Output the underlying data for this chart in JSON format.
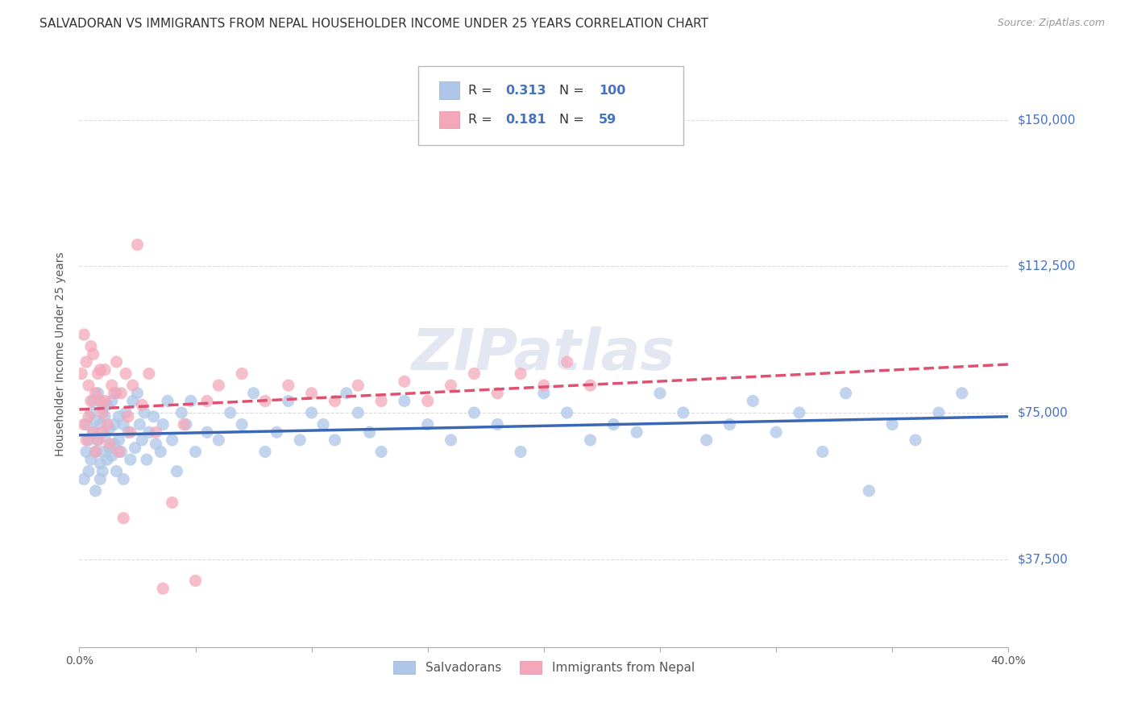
{
  "title": "SALVADORAN VS IMMIGRANTS FROM NEPAL HOUSEHOLDER INCOME UNDER 25 YEARS CORRELATION CHART",
  "source": "Source: ZipAtlas.com",
  "ylabel": "Householder Income Under 25 years",
  "xlim": [
    0.0,
    0.4
  ],
  "ylim": [
    15000,
    165000
  ],
  "yticks": [
    37500,
    75000,
    112500,
    150000
  ],
  "ytick_labels": [
    "$37,500",
    "$75,000",
    "$112,500",
    "$150,000"
  ],
  "xticks": [
    0.0,
    0.05,
    0.1,
    0.15,
    0.2,
    0.25,
    0.3,
    0.35,
    0.4
  ],
  "xtick_labels": [
    "0.0%",
    "",
    "",
    "",
    "",
    "",
    "",
    "",
    "40.0%"
  ],
  "series": [
    {
      "name": "Salvadorans",
      "color": "#aec6e8",
      "R": 0.313,
      "N": 100,
      "line_color": "#3a68b4",
      "line_style": "solid",
      "x": [
        0.002,
        0.003,
        0.003,
        0.004,
        0.004,
        0.005,
        0.005,
        0.006,
        0.006,
        0.007,
        0.007,
        0.007,
        0.008,
        0.008,
        0.009,
        0.009,
        0.009,
        0.01,
        0.01,
        0.01,
        0.011,
        0.011,
        0.012,
        0.012,
        0.013,
        0.013,
        0.014,
        0.014,
        0.015,
        0.015,
        0.016,
        0.016,
        0.017,
        0.017,
        0.018,
        0.019,
        0.019,
        0.02,
        0.021,
        0.022,
        0.023,
        0.024,
        0.025,
        0.026,
        0.027,
        0.028,
        0.029,
        0.03,
        0.032,
        0.033,
        0.035,
        0.036,
        0.038,
        0.04,
        0.042,
        0.044,
        0.046,
        0.048,
        0.05,
        0.055,
        0.06,
        0.065,
        0.07,
        0.075,
        0.08,
        0.085,
        0.09,
        0.095,
        0.1,
        0.105,
        0.11,
        0.115,
        0.12,
        0.125,
        0.13,
        0.14,
        0.15,
        0.16,
        0.17,
        0.18,
        0.19,
        0.2,
        0.21,
        0.22,
        0.23,
        0.24,
        0.25,
        0.26,
        0.27,
        0.28,
        0.29,
        0.3,
        0.31,
        0.32,
        0.33,
        0.34,
        0.35,
        0.36,
        0.37,
        0.38
      ],
      "y": [
        58000,
        65000,
        72000,
        60000,
        68000,
        75000,
        63000,
        70000,
        78000,
        65000,
        55000,
        73000,
        68000,
        80000,
        62000,
        72000,
        58000,
        76000,
        65000,
        60000,
        74000,
        69000,
        77000,
        63000,
        71000,
        66000,
        78000,
        64000,
        72000,
        67000,
        80000,
        60000,
        74000,
        68000,
        65000,
        72000,
        58000,
        75000,
        70000,
        63000,
        78000,
        66000,
        80000,
        72000,
        68000,
        75000,
        63000,
        70000,
        74000,
        67000,
        65000,
        72000,
        78000,
        68000,
        60000,
        75000,
        72000,
        78000,
        65000,
        70000,
        68000,
        75000,
        72000,
        80000,
        65000,
        70000,
        78000,
        68000,
        75000,
        72000,
        68000,
        80000,
        75000,
        70000,
        65000,
        78000,
        72000,
        68000,
        75000,
        72000,
        65000,
        80000,
        75000,
        68000,
        72000,
        70000,
        80000,
        75000,
        68000,
        72000,
        78000,
        70000,
        75000,
        65000,
        80000,
        55000,
        72000,
        68000,
        75000,
        80000
      ]
    },
    {
      "name": "Immigrants from Nepal",
      "color": "#f4a7b9",
      "R": 0.181,
      "N": 59,
      "line_color": "#e05070",
      "line_style": "dashed",
      "x": [
        0.001,
        0.002,
        0.002,
        0.003,
        0.003,
        0.004,
        0.004,
        0.005,
        0.005,
        0.006,
        0.006,
        0.007,
        0.007,
        0.008,
        0.008,
        0.009,
        0.009,
        0.01,
        0.01,
        0.011,
        0.011,
        0.012,
        0.013,
        0.014,
        0.015,
        0.016,
        0.017,
        0.018,
        0.019,
        0.02,
        0.021,
        0.022,
        0.023,
        0.025,
        0.027,
        0.03,
        0.033,
        0.036,
        0.04,
        0.045,
        0.05,
        0.055,
        0.06,
        0.07,
        0.08,
        0.09,
        0.1,
        0.11,
        0.12,
        0.13,
        0.14,
        0.15,
        0.16,
        0.17,
        0.18,
        0.19,
        0.2,
        0.21,
        0.22
      ],
      "y": [
        85000,
        95000,
        72000,
        88000,
        68000,
        82000,
        74000,
        78000,
        92000,
        70000,
        90000,
        80000,
        65000,
        85000,
        68000,
        78000,
        86000,
        75000,
        70000,
        78000,
        86000,
        72000,
        67000,
        82000,
        80000,
        88000,
        65000,
        80000,
        48000,
        85000,
        74000,
        70000,
        82000,
        118000,
        77000,
        85000,
        70000,
        30000,
        52000,
        72000,
        32000,
        78000,
        82000,
        85000,
        78000,
        82000,
        80000,
        78000,
        82000,
        78000,
        83000,
        78000,
        82000,
        85000,
        80000,
        85000,
        82000,
        88000,
        82000
      ]
    }
  ],
  "watermark": "ZIPatlas",
  "background_color": "#ffffff",
  "grid_color": "#cccccc",
  "title_fontsize": 11,
  "tick_label_color_right": "#4472c4",
  "legend_R_color": "#4472c4",
  "legend_N_color": "#4472c4"
}
